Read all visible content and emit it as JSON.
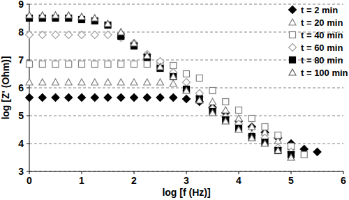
{
  "chart_data": {
    "type": "scatter",
    "x_label": "log [f (Hz)]",
    "y_label": "log [Z' (Ohm)]",
    "x": [
      0,
      0.25,
      0.5,
      0.75,
      1,
      1.25,
      1.5,
      1.75,
      2,
      2.25,
      2.5,
      2.75,
      3,
      3.25,
      3.5,
      3.75,
      4,
      4.25,
      4.5,
      4.75,
      5,
      5.25,
      5.5
    ],
    "series": [
      {
        "name": "t = 2 min",
        "color": "#000000",
        "marker": "diamond",
        "values": [
          5.65,
          5.65,
          5.65,
          5.65,
          5.65,
          5.65,
          5.65,
          5.65,
          5.65,
          5.65,
          5.65,
          5.65,
          5.6,
          5.5,
          5.3,
          5.1,
          4.8,
          4.6,
          4.4,
          4.2,
          4.0,
          3.8,
          3.7
        ]
      },
      {
        "name": "t = 20 min",
        "color": "#808080",
        "marker": "triangle-open",
        "values": [
          6.2,
          6.2,
          6.2,
          6.2,
          6.2,
          6.2,
          6.2,
          6.2,
          6.2,
          6.2,
          6.2,
          6.15,
          6.0,
          5.8,
          5.5,
          5.2,
          4.9,
          4.6,
          4.4,
          4.1,
          3.9,
          null,
          null
        ]
      },
      {
        "name": "t = 40 min",
        "color": "#808080",
        "marker": "square-open",
        "values": [
          6.85,
          6.85,
          6.85,
          6.85,
          6.85,
          6.85,
          6.85,
          6.85,
          6.85,
          6.85,
          6.85,
          6.8,
          6.5,
          6.35,
          5.9,
          5.5,
          5.2,
          4.9,
          4.6,
          4.3,
          3.9,
          3.6,
          null
        ]
      },
      {
        "name": "t = 60 min",
        "color": "#a0a0a0",
        "marker": "diamond-open",
        "values": [
          7.9,
          7.9,
          7.9,
          7.9,
          7.9,
          7.9,
          7.9,
          7.8,
          7.6,
          7.2,
          6.95,
          6.55,
          6.2,
          5.8,
          5.25,
          4.95,
          4.7,
          4.3,
          4.2,
          3.85,
          3.7,
          null,
          null
        ]
      },
      {
        "name": "t = 80 min",
        "color": "#000000",
        "marker": "square",
        "values": [
          8.5,
          8.5,
          8.5,
          8.5,
          8.45,
          8.4,
          8.25,
          7.85,
          7.5,
          7.1,
          6.7,
          6.4,
          5.95,
          5.6,
          5.15,
          4.85,
          4.55,
          4.25,
          4.05,
          3.75,
          3.6,
          null,
          null
        ]
      },
      {
        "name": "t = 100 min",
        "color": "#606060",
        "marker": "triangle-open",
        "values": [
          8.6,
          8.6,
          8.6,
          8.6,
          8.55,
          8.5,
          8.3,
          8.0,
          7.6,
          7.15,
          6.75,
          6.4,
          5.9,
          5.55,
          5.1,
          4.8,
          4.5,
          4.2,
          4.0,
          3.75,
          3.5,
          null,
          null
        ]
      }
    ],
    "xlim": [
      0,
      6
    ],
    "xticks": [
      0,
      1,
      2,
      3,
      4,
      5,
      6
    ],
    "ylim": [
      3,
      9
    ],
    "yticks": [
      3,
      4,
      5,
      6,
      7,
      8,
      9
    ],
    "grid": true,
    "legend": "upper-right"
  }
}
